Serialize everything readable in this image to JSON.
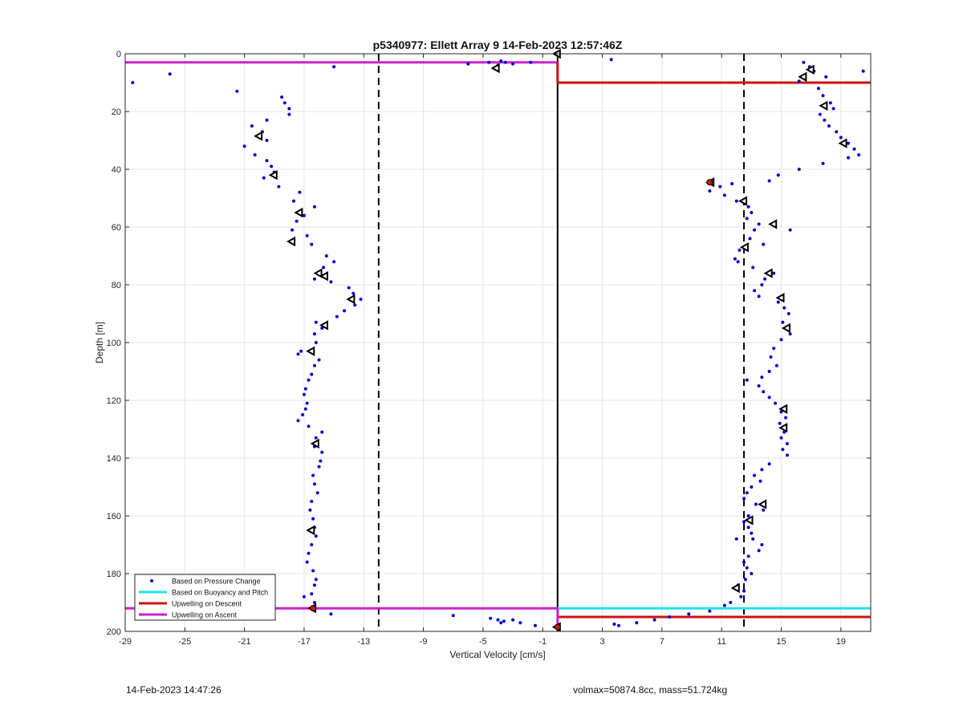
{
  "chart_data": {
    "type": "scatter",
    "title": "p5340977: Ellett Array 9 14-Feb-2023 12:57:46Z",
    "xlabel": "Vertical Velocity [cm/s]",
    "ylabel": "Depth [m]",
    "xlim": [
      -29,
      21
    ],
    "ylim": [
      0,
      200
    ],
    "y_reversed": true,
    "grid": true,
    "xticks": [
      -29,
      -25,
      -21,
      -17,
      -13,
      -9,
      -5,
      -1,
      3,
      7,
      11,
      15,
      19
    ],
    "yticks": [
      0,
      20,
      40,
      60,
      80,
      100,
      120,
      140,
      160,
      180,
      200
    ],
    "legend": {
      "placement": "bottom-left",
      "entries": [
        {
          "label": "Based on Pressure Change",
          "color": "#0000cc",
          "style": "dot"
        },
        {
          "label": "Based on Buoyancy and Pitch",
          "color": "#22e4e4",
          "style": "line"
        },
        {
          "label": "Upwelling on Descent",
          "color": "#cc1111",
          "style": "line"
        },
        {
          "label": "Upwelling on Ascent",
          "color": "#cc22cc",
          "style": "line"
        }
      ]
    },
    "reference_lines": {
      "solid_vertical_x": 0,
      "dashed_vertical_x": [
        -12,
        12.5
      ]
    },
    "horizontal_lines": [
      {
        "series": "Upwelling on Ascent",
        "y": 3,
        "x_from": -29,
        "x_to": 0,
        "color": "#cc22cc"
      },
      {
        "series": "Upwelling on Descent",
        "y": 10,
        "x_from": 0,
        "x_to": 21,
        "color": "#cc1111"
      },
      {
        "series": "Based on Buoyancy and Pitch",
        "y": 192,
        "x_from": 0,
        "x_to": 21,
        "color": "#22e4e4"
      },
      {
        "series": "Upwelling on Ascent",
        "y": 192,
        "x_from": -29,
        "x_to": 0,
        "color": "#cc22cc"
      },
      {
        "series": "Upwelling on Descent",
        "y": 195,
        "x_from": 0,
        "x_to": 21,
        "color": "#cc1111"
      }
    ],
    "vertical_segments": [
      {
        "series": "Upwelling on Descent",
        "x": 0,
        "y_from": 3,
        "y_to": 10,
        "color": "#cc1111"
      },
      {
        "series": "Upwelling on Ascent",
        "x": 0,
        "y_from": 192,
        "y_to": 199,
        "color": "#cc22cc"
      }
    ],
    "series": [
      {
        "name": "Based on Pressure Change",
        "color": "#0000cc",
        "points": [
          [
            -28.5,
            10
          ],
          [
            -26,
            7
          ],
          [
            -21.5,
            13
          ],
          [
            -18.5,
            15
          ],
          [
            -18.3,
            17
          ],
          [
            -18,
            19
          ],
          [
            -18,
            21
          ],
          [
            -19.5,
            23
          ],
          [
            -20.5,
            25
          ],
          [
            -19.8,
            27
          ],
          [
            -20,
            29
          ],
          [
            -19.5,
            30
          ],
          [
            -21,
            32
          ],
          [
            -20.3,
            35
          ],
          [
            -19.5,
            37
          ],
          [
            -19.2,
            39
          ],
          [
            -19,
            41
          ],
          [
            -19.7,
            43
          ],
          [
            -18.7,
            46
          ],
          [
            -17.3,
            48
          ],
          [
            -17.7,
            51
          ],
          [
            -16.3,
            53
          ],
          [
            -17,
            56
          ],
          [
            -17.5,
            58
          ],
          [
            -17.8,
            61
          ],
          [
            -16.8,
            63
          ],
          [
            -16.5,
            66
          ],
          [
            -15.5,
            70
          ],
          [
            -15,
            72
          ],
          [
            -15.7,
            74
          ],
          [
            -16,
            76
          ],
          [
            -16.3,
            78
          ],
          [
            -15.2,
            79
          ],
          [
            -14,
            81
          ],
          [
            -13.7,
            83
          ],
          [
            -13.2,
            85
          ],
          [
            -13.6,
            87
          ],
          [
            -14.3,
            89
          ],
          [
            -14.8,
            91
          ],
          [
            -16.2,
            93
          ],
          [
            -15.8,
            95
          ],
          [
            -16.3,
            97
          ],
          [
            -16.2,
            100
          ],
          [
            -17.2,
            103
          ],
          [
            -17.4,
            104
          ],
          [
            -16,
            106
          ],
          [
            -16.3,
            108
          ],
          [
            -16.5,
            111
          ],
          [
            -16.7,
            113
          ],
          [
            -16.9,
            116
          ],
          [
            -17,
            118
          ],
          [
            -16.8,
            121
          ],
          [
            -16.9,
            123
          ],
          [
            -17.1,
            125
          ],
          [
            -17.4,
            127
          ],
          [
            -16.7,
            129
          ],
          [
            -15.8,
            131
          ],
          [
            -16.2,
            133
          ],
          [
            -16.3,
            136
          ],
          [
            -15.8,
            138
          ],
          [
            -15.9,
            141
          ],
          [
            -16,
            143
          ],
          [
            -16.4,
            146
          ],
          [
            -16.3,
            149
          ],
          [
            -16.1,
            152
          ],
          [
            -16.5,
            155
          ],
          [
            -16.6,
            158
          ],
          [
            -16.4,
            161
          ],
          [
            -16.3,
            164
          ],
          [
            -16.2,
            167
          ],
          [
            -16.5,
            170
          ],
          [
            -16.7,
            173
          ],
          [
            -16.8,
            176
          ],
          [
            -16.4,
            179
          ],
          [
            -16.2,
            182
          ],
          [
            -16.3,
            184
          ],
          [
            -16.5,
            187
          ],
          [
            -17,
            188
          ],
          [
            -16.3,
            190
          ],
          [
            -15.2,
            194
          ],
          [
            -4.6,
            3
          ],
          [
            -3.8,
            2.5
          ],
          [
            -3.5,
            3
          ],
          [
            -3,
            3.5
          ],
          [
            -1.8,
            3
          ],
          [
            -4,
            4
          ],
          [
            -6,
            3.5
          ],
          [
            -15,
            4.5
          ],
          [
            -7,
            194.5
          ],
          [
            -4.5,
            195.5
          ],
          [
            -4,
            196
          ],
          [
            -3.6,
            196.5
          ],
          [
            -3,
            196
          ],
          [
            -2.5,
            197
          ],
          [
            -1.5,
            198
          ],
          [
            -3.8,
            197
          ],
          [
            3.6,
            2
          ],
          [
            16.5,
            3
          ],
          [
            16.9,
            4.5
          ],
          [
            17.2,
            6
          ],
          [
            16.4,
            8
          ],
          [
            16.2,
            9.5
          ],
          [
            18,
            8
          ],
          [
            20.5,
            6
          ],
          [
            17.5,
            12
          ],
          [
            17.8,
            14.5
          ],
          [
            18.3,
            17
          ],
          [
            18.5,
            19
          ],
          [
            17.6,
            21
          ],
          [
            17.9,
            23
          ],
          [
            18.2,
            25
          ],
          [
            18.7,
            27
          ],
          [
            19,
            29
          ],
          [
            19.5,
            31
          ],
          [
            19.9,
            33
          ],
          [
            20.2,
            35
          ],
          [
            19.5,
            36
          ],
          [
            17.8,
            38
          ],
          [
            16.2,
            40
          ],
          [
            14.8,
            42
          ],
          [
            14.2,
            44
          ],
          [
            11.7,
            45
          ],
          [
            10.9,
            46
          ],
          [
            10.2,
            47.5
          ],
          [
            11.2,
            49
          ],
          [
            12,
            51
          ],
          [
            12.8,
            53
          ],
          [
            13,
            55
          ],
          [
            12.7,
            57
          ],
          [
            13.5,
            59
          ],
          [
            13.2,
            61
          ],
          [
            15.6,
            61
          ],
          [
            12.9,
            64
          ],
          [
            13.8,
            66
          ],
          [
            12.2,
            68
          ],
          [
            11.9,
            71
          ],
          [
            12.1,
            72
          ],
          [
            13.1,
            74
          ],
          [
            14.5,
            76
          ],
          [
            13.9,
            78
          ],
          [
            13.7,
            80
          ],
          [
            13.2,
            82
          ],
          [
            13.5,
            84
          ],
          [
            14.8,
            86
          ],
          [
            15.2,
            88
          ],
          [
            15.5,
            90
          ],
          [
            15.1,
            93
          ],
          [
            15.3,
            95
          ],
          [
            15.6,
            97
          ],
          [
            15,
            99
          ],
          [
            14.5,
            102
          ],
          [
            14.3,
            105
          ],
          [
            14.7,
            108
          ],
          [
            14.2,
            110
          ],
          [
            13.7,
            112
          ],
          [
            12.7,
            113
          ],
          [
            13.5,
            115
          ],
          [
            13.8,
            117
          ],
          [
            14.2,
            119
          ],
          [
            14.6,
            121
          ],
          [
            15,
            124
          ],
          [
            15.3,
            126
          ],
          [
            14.9,
            128
          ],
          [
            15.2,
            131
          ],
          [
            15,
            133
          ],
          [
            15.4,
            135
          ],
          [
            15.1,
            137
          ],
          [
            15.4,
            139
          ],
          [
            14.2,
            142
          ],
          [
            13.7,
            144
          ],
          [
            13.2,
            146
          ],
          [
            13.6,
            148
          ],
          [
            13,
            150
          ],
          [
            12.7,
            152
          ],
          [
            12.5,
            154
          ],
          [
            13.3,
            156
          ],
          [
            13.8,
            158
          ],
          [
            12.8,
            160
          ],
          [
            12.5,
            162
          ],
          [
            12.8,
            164
          ],
          [
            13,
            166
          ],
          [
            13.1,
            168
          ],
          [
            12,
            168
          ],
          [
            13.7,
            170
          ],
          [
            13.5,
            172
          ],
          [
            12.8,
            174
          ],
          [
            12.5,
            176
          ],
          [
            12.7,
            178
          ],
          [
            13,
            180
          ],
          [
            12.6,
            182
          ],
          [
            12.1,
            184
          ],
          [
            12.5,
            186
          ],
          [
            12.3,
            188
          ],
          [
            11.6,
            190
          ],
          [
            11.2,
            191
          ],
          [
            10.2,
            193
          ],
          [
            8.8,
            194
          ],
          [
            7.5,
            195
          ],
          [
            6.5,
            196
          ],
          [
            5.3,
            197
          ],
          [
            3.8,
            197.5
          ],
          [
            4.1,
            198
          ]
        ]
      },
      {
        "name": "",
        "color": "#000000",
        "marker": "triangle-left-outline",
        "points": [
          [
            0,
            0
          ],
          [
            -4.1,
            5
          ],
          [
            -20,
            28.5
          ],
          [
            -19,
            42
          ],
          [
            -17.3,
            55
          ],
          [
            -17.8,
            65
          ],
          [
            -16,
            76
          ],
          [
            -15.6,
            77
          ],
          [
            -13.8,
            85
          ],
          [
            -15.6,
            94
          ],
          [
            -16.5,
            103
          ],
          [
            -16.2,
            135
          ],
          [
            -16.5,
            165
          ],
          [
            -16.4,
            192
          ],
          [
            0,
            198.5
          ],
          [
            17,
            5.5
          ],
          [
            16.5,
            8
          ],
          [
            17.9,
            18
          ],
          [
            19.2,
            31
          ],
          [
            10.3,
            44.5
          ],
          [
            12.5,
            51
          ],
          [
            14.5,
            59
          ],
          [
            12.6,
            67
          ],
          [
            14.2,
            76
          ],
          [
            15,
            84.5
          ],
          [
            15.4,
            95
          ],
          [
            15.2,
            123
          ],
          [
            15.2,
            129.5
          ],
          [
            13.8,
            156
          ],
          [
            12.9,
            161.5
          ],
          [
            12,
            185
          ]
        ]
      }
    ],
    "highlight_points": [
      {
        "x": 10.2,
        "y": 44.5,
        "color": "#cc1111"
      },
      {
        "x": -16.4,
        "y": 192,
        "color": "#cc1111"
      },
      {
        "x": 0,
        "y": 198.5,
        "color": "#cc1111"
      }
    ]
  },
  "footer": {
    "timestamp": "14-Feb-2023 14:47:26",
    "info": "volmax=50874.8cc, mass=51.724kg"
  }
}
